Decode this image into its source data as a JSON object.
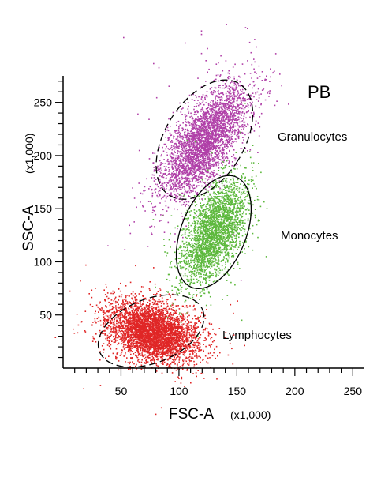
{
  "chart_data": {
    "type": "scatter",
    "title": "PB",
    "xlabel": "FSC-A",
    "xlabel_unit": "(x1,000)",
    "ylabel": "SSC-A",
    "ylabel_unit": "(x1,000)",
    "xlim": [
      0,
      260
    ],
    "ylim": [
      0,
      275
    ],
    "xticks": [
      50,
      100,
      150,
      200,
      250
    ],
    "yticks": [
      50,
      100,
      150,
      200,
      250
    ],
    "grid": false,
    "series": [
      {
        "name": "Granulocytes",
        "color": "#b040a8",
        "center": [
          122,
          215
        ],
        "gate": {
          "center": [
            122,
            215
          ],
          "semi_axes": [
            34,
            62
          ],
          "rotation_deg": 32,
          "style": "dashed"
        }
      },
      {
        "name": "Monocytes",
        "color": "#5cb83c",
        "center": [
          132,
          128
        ],
        "gate": {
          "center": [
            130,
            128
          ],
          "semi_axes": [
            28,
            56
          ],
          "rotation_deg": 22,
          "style": "solid"
        }
      },
      {
        "name": "Lymphocytes",
        "color": "#e02626",
        "center": [
          78,
          33
        ],
        "gate": {
          "center": [
            76,
            35
          ],
          "semi_axes": [
            48,
            30
          ],
          "rotation_deg": -22,
          "style": "dashed"
        }
      }
    ]
  }
}
